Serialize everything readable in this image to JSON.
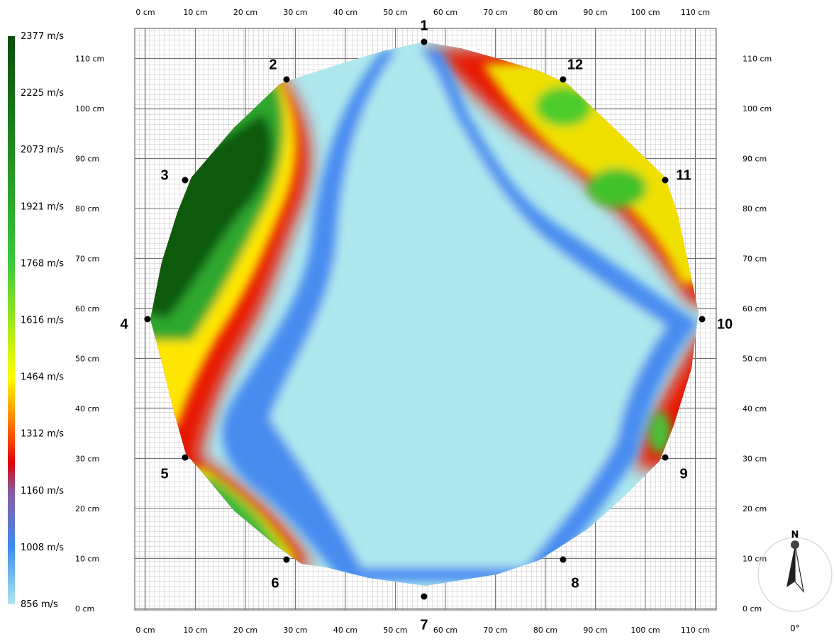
{
  "legend": {
    "labels": [
      "2377 m/s",
      "2225 m/s",
      "2073 m/s",
      "1921 m/s",
      "1768 m/s",
      "1616 m/s",
      "1464 m/s",
      "1312 m/s",
      "1160 m/s",
      "1008 m/s",
      "856 m/s"
    ],
    "stops": [
      {
        "value": 2377,
        "color": "#0a4d0a"
      },
      {
        "value": 2073,
        "color": "#1e8c1e"
      },
      {
        "value": 1768,
        "color": "#3cc93c"
      },
      {
        "value": 1616,
        "color": "#9be61e"
      },
      {
        "value": 1464,
        "color": "#ffff00"
      },
      {
        "value": 1312,
        "color": "#ff5a00"
      },
      {
        "value": 1236,
        "color": "#e00000"
      },
      {
        "value": 1160,
        "color": "#8a5aa0"
      },
      {
        "value": 1008,
        "color": "#3c8cf0"
      },
      {
        "value": 856,
        "color": "#aee8ee"
      }
    ]
  },
  "x_ticks_top": [
    "0 cm",
    "10 cm",
    "20 cm",
    "30 cm",
    "40 cm",
    "50 cm",
    "60 cm",
    "70 cm",
    "80 cm",
    "90 cm",
    "100 cm",
    "110 cm"
  ],
  "x_ticks_bottom": [
    "0 cm",
    "10 cm",
    "20 cm",
    "30 cm",
    "40 cm",
    "50 cm",
    "60 cm",
    "70 cm",
    "80 cm",
    "90 cm",
    "100 cm",
    "110 cm"
  ],
  "y_ticks_left": [
    "0 cm",
    "10 cm",
    "20 cm",
    "30 cm",
    "40 cm",
    "50 cm",
    "60 cm",
    "70 cm",
    "80 cm",
    "90 cm",
    "100 cm",
    "110 cm"
  ],
  "y_ticks_right": [
    "0 cm",
    "10 cm",
    "20 cm",
    "30 cm",
    "40 cm",
    "50 cm",
    "60 cm",
    "70 cm",
    "80 cm",
    "90 cm",
    "100 cm",
    "110 cm"
  ],
  "sensors": [
    "1",
    "2",
    "3",
    "4",
    "5",
    "6",
    "7",
    "8",
    "9",
    "10",
    "11",
    "12"
  ],
  "compass": {
    "north_label": "N",
    "bearing": "0°"
  },
  "colors": {
    "grid_minor": "#c4c4c4",
    "grid_major": "#707070",
    "sensor": "#000000"
  }
}
